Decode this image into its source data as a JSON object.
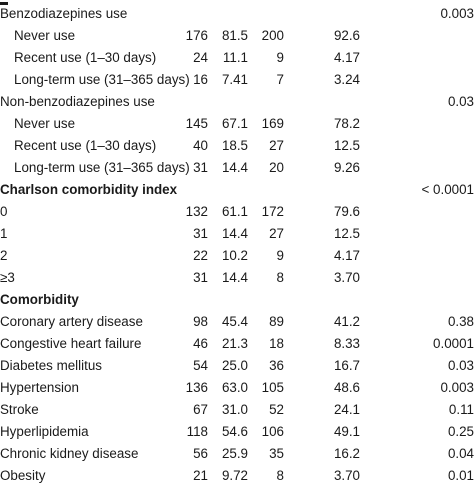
{
  "rows": [
    {
      "type": "head",
      "label": "Benzodiazepines use",
      "p": "0.003",
      "bold": false
    },
    {
      "type": "data",
      "label": "Never use",
      "c1": "176",
      "c2": "81.5",
      "c3": "200",
      "c4": "92.6",
      "p": ""
    },
    {
      "type": "data",
      "label": "Recent use (1–30 days)",
      "c1": "24",
      "c2": "11.1",
      "c3": "9",
      "c4": "4.17",
      "p": ""
    },
    {
      "type": "data",
      "label": "Long-term use (31–365 days)",
      "c1": "16",
      "c2": "7.41",
      "c3": "7",
      "c4": "3.24",
      "p": ""
    },
    {
      "type": "head",
      "label": "Non-benzodiazepines use",
      "p": "0.03",
      "bold": false
    },
    {
      "type": "data",
      "label": "Never use",
      "c1": "145",
      "c2": "67.1",
      "c3": "169",
      "c4": "78.2",
      "p": ""
    },
    {
      "type": "data",
      "label": "Recent use (1–30 days)",
      "c1": "40",
      "c2": "18.5",
      "c3": "27",
      "c4": "12.5",
      "p": ""
    },
    {
      "type": "data",
      "label": "Long-term use (31–365 days)",
      "c1": "31",
      "c2": "14.4",
      "c3": "20",
      "c4": "9.26",
      "p": ""
    },
    {
      "type": "head",
      "label": "Charlson comorbidity index",
      "p": "< 0.0001",
      "bold": true
    },
    {
      "type": "flat",
      "label": "0",
      "c1": "132",
      "c2": "61.1",
      "c3": "172",
      "c4": "79.6",
      "p": ""
    },
    {
      "type": "flat",
      "label": "1",
      "c1": "31",
      "c2": "14.4",
      "c3": "27",
      "c4": "12.5",
      "p": ""
    },
    {
      "type": "flat",
      "label": "2",
      "c1": "22",
      "c2": "10.2",
      "c3": "9",
      "c4": "4.17",
      "p": ""
    },
    {
      "type": "flat",
      "label": "≥3",
      "c1": "31",
      "c2": "14.4",
      "c3": "8",
      "c4": "3.70",
      "p": ""
    },
    {
      "type": "head",
      "label": "Comorbidity",
      "p": "",
      "bold": true
    },
    {
      "type": "flat",
      "label": "Coronary artery disease",
      "c1": "98",
      "c2": "45.4",
      "c3": "89",
      "c4": "41.2",
      "p": "0.38"
    },
    {
      "type": "flat",
      "label": "Congestive heart failure",
      "c1": "46",
      "c2": "21.3",
      "c3": "18",
      "c4": "8.33",
      "p": "0.0001"
    },
    {
      "type": "flat",
      "label": "Diabetes mellitus",
      "c1": "54",
      "c2": "25.0",
      "c3": "36",
      "c4": "16.7",
      "p": "0.03"
    },
    {
      "type": "flat",
      "label": "Hypertension",
      "c1": "136",
      "c2": "63.0",
      "c3": "105",
      "c4": "48.6",
      "p": "0.003"
    },
    {
      "type": "flat",
      "label": "Stroke",
      "c1": "67",
      "c2": "31.0",
      "c3": "52",
      "c4": "24.1",
      "p": "0.11"
    },
    {
      "type": "flat",
      "label": "Hyperlipidemia",
      "c1": "118",
      "c2": "54.6",
      "c3": "106",
      "c4": "49.1",
      "p": "0.25"
    },
    {
      "type": "flat",
      "label": "Chronic kidney disease",
      "c1": "56",
      "c2": "25.9",
      "c3": "35",
      "c4": "16.2",
      "p": "0.04"
    },
    {
      "type": "flat",
      "label": "Obesity",
      "c1": "21",
      "c2": "9.72",
      "c3": "8",
      "c4": "3.70",
      "p": "0.01"
    }
  ]
}
